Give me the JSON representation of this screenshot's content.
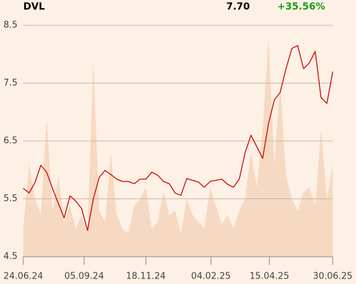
{
  "chart_data": {
    "type": "line",
    "header": {
      "symbol": "DVL",
      "price": "7.70",
      "change": "+35.56%"
    },
    "x": [
      "24.06.24",
      "01.07.24",
      "08.07.24",
      "15.07.24",
      "22.07.24",
      "29.07.24",
      "05.08.24",
      "12.08.24",
      "19.08.24",
      "26.08.24",
      "02.09.24",
      "09.09.24",
      "16.09.24",
      "23.09.24",
      "30.09.24",
      "07.10.24",
      "14.10.24",
      "21.10.24",
      "28.10.24",
      "04.11.24",
      "11.11.24",
      "18.11.24",
      "25.11.24",
      "02.12.24",
      "09.12.24",
      "16.12.24",
      "23.12.24",
      "30.12.24",
      "06.01.25",
      "13.01.25",
      "20.01.25",
      "27.01.25",
      "03.02.25",
      "10.02.25",
      "17.02.25",
      "24.02.25",
      "03.03.25",
      "10.03.25",
      "17.03.25",
      "24.03.25",
      "31.03.25",
      "07.04.25",
      "14.04.25",
      "21.04.25",
      "28.04.25",
      "05.05.25",
      "12.05.25",
      "19.05.25",
      "26.05.25",
      "02.06.25",
      "09.06.25",
      "16.06.25",
      "23.06.25",
      "30.06.25"
    ],
    "series": [
      {
        "name": "DVL",
        "color": "#cc0000",
        "values": [
          5.68,
          5.6,
          5.78,
          6.08,
          5.96,
          5.68,
          5.42,
          5.17,
          5.55,
          5.46,
          5.33,
          4.95,
          5.5,
          5.87,
          5.99,
          5.92,
          5.84,
          5.8,
          5.8,
          5.76,
          5.84,
          5.84,
          5.96,
          5.91,
          5.8,
          5.76,
          5.6,
          5.56,
          5.85,
          5.82,
          5.79,
          5.7,
          5.8,
          5.82,
          5.84,
          5.75,
          5.7,
          5.84,
          6.3,
          6.6,
          6.4,
          6.2,
          6.8,
          7.21,
          7.34,
          7.75,
          8.1,
          8.15,
          7.75,
          7.85,
          8.05,
          7.25,
          7.15,
          7.7
        ]
      },
      {
        "name": "Volume",
        "color": "#f6d9c2",
        "axis": "y2",
        "values": [
          12,
          40,
          25,
          18,
          60,
          20,
          35,
          15,
          22,
          12,
          18,
          10,
          85,
          20,
          15,
          45,
          18,
          12,
          10,
          22,
          25,
          30,
          12,
          15,
          28,
          18,
          20,
          10,
          25,
          18,
          15,
          12,
          30,
          22,
          14,
          18,
          12,
          20,
          25,
          45,
          30,
          55,
          95,
          40,
          75,
          35,
          25,
          20,
          28,
          30,
          22,
          55,
          25,
          40
        ]
      }
    ],
    "ylim": [
      4.5,
      8.5
    ],
    "yticks": [
      4.5,
      5.5,
      6.5,
      7.5,
      8.5
    ],
    "y2lim": [
      0,
      100
    ],
    "xlim": [
      "24.06.24",
      "30.06.25"
    ],
    "xticks": [
      "24.06.24",
      "05.09.24",
      "18.11.24",
      "04.02.25",
      "15.04.25",
      "30.06.25"
    ],
    "grid": true
  }
}
